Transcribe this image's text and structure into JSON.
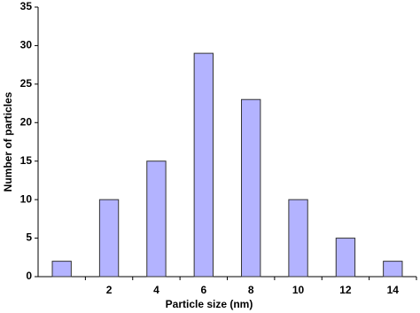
{
  "chart_data": {
    "type": "bar",
    "x_label": "Particle size (nm)",
    "y_label": "Number of particles",
    "categories": [
      null,
      "2",
      "4",
      "6",
      "8",
      "10",
      "12",
      "14"
    ],
    "values": [
      2,
      10,
      15,
      29,
      23,
      10,
      5,
      2
    ],
    "color": "#b3b3ff",
    "ylim": [
      0,
      35
    ],
    "yticks": [
      0,
      5,
      10,
      15,
      20,
      25,
      30,
      35
    ],
    "grid": false
  }
}
